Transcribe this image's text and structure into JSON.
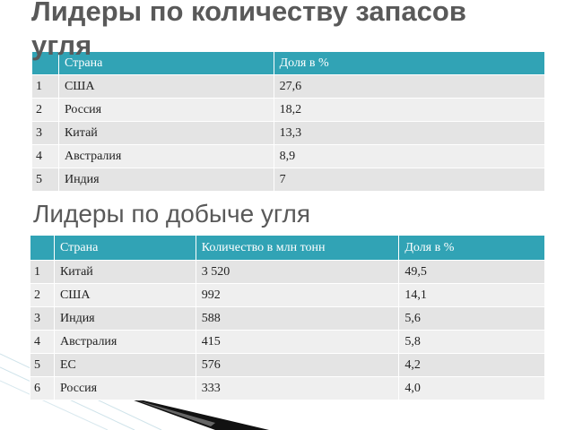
{
  "title": "Лидеры по количеству запасов угля",
  "table1": {
    "header": [
      "Страна",
      "Доля в %"
    ],
    "rows": [
      [
        "1",
        "США",
        "27,6"
      ],
      [
        "2",
        "Россия",
        "18,2"
      ],
      [
        "3",
        "Китай",
        "13,3"
      ],
      [
        "4",
        "Австралия",
        "8,9"
      ],
      [
        "5",
        "Индия",
        "7"
      ]
    ]
  },
  "subtitle": "Лидеры по добыче угля",
  "table2": {
    "header": [
      "Страна",
      "Количество в млн тонн",
      "Доля в %"
    ],
    "rows": [
      [
        "1",
        "Китай",
        "3 520",
        "49,5"
      ],
      [
        "2",
        "США",
        "992",
        "14,1"
      ],
      [
        "3",
        "Индия",
        "588",
        "5,6"
      ],
      [
        "4",
        "Австралия",
        "415",
        "5,8"
      ],
      [
        "5",
        "ЕС",
        "576",
        "4,2"
      ],
      [
        "6",
        "Россия",
        "333",
        "4,0"
      ]
    ]
  }
}
